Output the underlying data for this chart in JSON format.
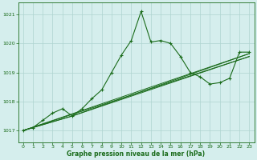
{
  "title": "Graphe pression niveau de la mer (hPa)",
  "background_color": "#d5eeed",
  "grid_color": "#aed4d0",
  "line_color": "#1a6b1a",
  "xlim": [
    -0.5,
    23.5
  ],
  "ylim": [
    1016.6,
    1021.4
  ],
  "yticks": [
    1017,
    1018,
    1019,
    1020,
    1021
  ],
  "xticks": [
    0,
    1,
    2,
    3,
    4,
    5,
    6,
    7,
    8,
    9,
    10,
    11,
    12,
    13,
    14,
    15,
    16,
    17,
    18,
    19,
    20,
    21,
    22,
    23
  ],
  "main_x": [
    0,
    1,
    2,
    3,
    4,
    5,
    6,
    7,
    8,
    9,
    10,
    11,
    12,
    13,
    14,
    15,
    16,
    17,
    18,
    19,
    20,
    21,
    22,
    23
  ],
  "main_y": [
    1017.0,
    1017.1,
    1017.35,
    1017.6,
    1017.75,
    1017.5,
    1017.75,
    1018.1,
    1018.4,
    1019.0,
    1019.6,
    1020.1,
    1021.1,
    1020.05,
    1020.1,
    1020.0,
    1019.55,
    1019.0,
    1018.85,
    1018.6,
    1018.65,
    1018.8,
    1019.7,
    1019.7
  ],
  "trend1_x": [
    0,
    23
  ],
  "trend1_y": [
    1017.0,
    1019.65
  ],
  "trend2_x": [
    0,
    23
  ],
  "trend2_y": [
    1017.0,
    1019.55
  ],
  "trend3_x": [
    0,
    5,
    23
  ],
  "trend3_y": [
    1017.0,
    1017.5,
    1019.65
  ],
  "trend4_x": [
    0,
    5,
    23
  ],
  "trend4_y": [
    1017.0,
    1017.5,
    1019.55
  ]
}
